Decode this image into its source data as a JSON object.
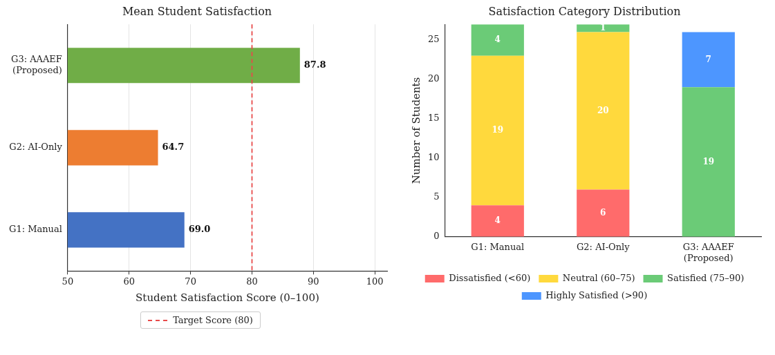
{
  "chart_data": [
    {
      "type": "bar",
      "orientation": "horizontal",
      "title": "Mean Student Satisfaction",
      "xlabel": "Student Satisfaction Score (0–100)",
      "categories": [
        "G3: AAAEF (Proposed)",
        "G2: AI-Only",
        "G1: Manual"
      ],
      "values": [
        87.8,
        64.7,
        69.0
      ],
      "colors": [
        "#70ad47",
        "#ed7d31",
        "#4472c4"
      ],
      "value_labels": [
        "87.8",
        "64.7",
        "69.0"
      ],
      "xlim": [
        50,
        102
      ],
      "xticks": [
        50,
        60,
        70,
        80,
        90,
        100
      ],
      "grid": "x",
      "ref_lines": [
        {
          "axis": "x",
          "value": 80,
          "label": "Target Score (80)",
          "color": "#e84a4a",
          "line_style": "dashed"
        }
      ],
      "legend": "bottom"
    },
    {
      "type": "bar",
      "stacked": true,
      "title": "Satisfaction Category Distribution",
      "ylabel": "Number of Students",
      "categories": [
        "G1: Manual",
        "G2: AI-Only",
        "G3: AAAEF (Proposed)"
      ],
      "series": [
        {
          "name": "Dissatisfied (<60)",
          "color": "#ff6b6b",
          "values": [
            4,
            6,
            null
          ]
        },
        {
          "name": "Neutral (60–75)",
          "color": "#ffd93d",
          "values": [
            19,
            20,
            null
          ]
        },
        {
          "name": "Satisfied (75–90)",
          "color": "#6bcb77",
          "values": [
            4,
            1,
            19
          ]
        },
        {
          "name": "Highly Satisfied (>90)",
          "color": "#4d96ff",
          "values": [
            null,
            null,
            7
          ]
        }
      ],
      "ylim": [
        0,
        27
      ],
      "yticks": [
        0,
        5,
        10,
        15,
        20,
        25
      ],
      "data_labels": true,
      "grid": false,
      "legend": "bottom"
    }
  ]
}
